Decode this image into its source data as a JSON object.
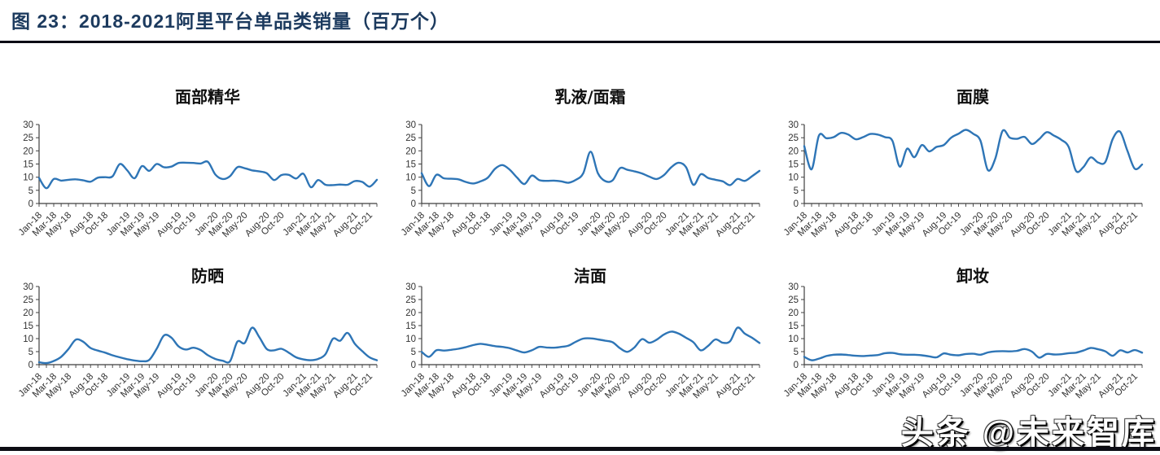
{
  "figure": {
    "title": "图 23：2018-2021阿里平台单品类销量（百万个）"
  },
  "watermark": {
    "text": "头条 @未来智库"
  },
  "chart_data": {
    "type": "line",
    "layout": "2x3 small multiples",
    "unit": "百万个",
    "line_color": "#2E75B6",
    "axis_color": "#3f3f3f",
    "title_color": "#1c3a5e",
    "ylim": [
      0,
      30
    ],
    "y_ticks": [
      0,
      5,
      10,
      15,
      20,
      25,
      30
    ],
    "grid": "off",
    "legend": "none",
    "n_points": 47,
    "x_start": "Jan-18",
    "x_end": "Nov-21",
    "x_tick_labels": [
      "Jan-18",
      "Mar-18",
      "May-18",
      "Aug-18",
      "Oct-18",
      "Jan-19",
      "Mar-19",
      "May-19",
      "Aug-19",
      "Oct-19",
      "Jan-20",
      "Mar-20",
      "May-20",
      "Aug-20",
      "Oct-20",
      "Jan-21",
      "Mar-21",
      "May-21",
      "Aug-21",
      "Oct-21"
    ],
    "x_label_indices": [
      0,
      2,
      4,
      7,
      9,
      12,
      14,
      16,
      19,
      21,
      24,
      26,
      28,
      31,
      33,
      36,
      38,
      40,
      43,
      45
    ],
    "charts": [
      {
        "title": "面部精华",
        "values": [
          9.7,
          5.8,
          9.3,
          8.7,
          9.0,
          9.2,
          8.8,
          8.3,
          9.8,
          10.0,
          10.3,
          15.0,
          12.6,
          9.6,
          14.2,
          12.4,
          15.0,
          13.8,
          14.0,
          15.4,
          15.5,
          15.4,
          15.2,
          15.8,
          11.0,
          9.3,
          10.4,
          13.8,
          13.4,
          12.6,
          12.2,
          11.5,
          8.9,
          10.8,
          10.9,
          9.5,
          11.3,
          6.2,
          8.9,
          7.1,
          7.0,
          7.2,
          7.1,
          8.5,
          8.2,
          6.4,
          9.0
        ]
      },
      {
        "title": "乳液/面霜",
        "values": [
          11.5,
          6.6,
          10.9,
          9.6,
          9.4,
          9.2,
          8.2,
          7.6,
          8.4,
          9.8,
          13.2,
          14.6,
          12.8,
          9.8,
          7.4,
          10.6,
          8.9,
          8.6,
          8.7,
          8.4,
          7.9,
          9.0,
          11.5,
          19.7,
          11.5,
          8.5,
          8.8,
          13.4,
          12.8,
          12.2,
          11.4,
          10.2,
          9.3,
          10.8,
          13.8,
          15.5,
          13.8,
          7.1,
          11.1,
          9.7,
          9.0,
          8.4,
          7.0,
          9.3,
          8.6,
          10.4,
          12.4
        ]
      },
      {
        "title": "面膜",
        "values": [
          21.8,
          13.0,
          25.8,
          24.8,
          25.2,
          26.8,
          26.2,
          24.4,
          25.2,
          26.4,
          26.2,
          25.2,
          23.8,
          14.0,
          20.8,
          17.6,
          22.2,
          19.8,
          21.5,
          22.2,
          25.0,
          26.5,
          28.0,
          26.5,
          23.8,
          12.7,
          17.0,
          27.6,
          25.0,
          24.6,
          25.3,
          22.6,
          24.5,
          27.1,
          25.8,
          24.2,
          21.5,
          12.4,
          13.8,
          17.5,
          15.6,
          15.8,
          24.5,
          27.3,
          20.0,
          13.2,
          14.8
        ]
      },
      {
        "title": "防晒",
        "values": [
          0.9,
          0.6,
          1.4,
          3.0,
          6.0,
          9.6,
          8.8,
          6.4,
          5.4,
          4.6,
          3.6,
          2.8,
          2.1,
          1.6,
          1.3,
          1.8,
          6.0,
          11.2,
          10.4,
          7.0,
          5.8,
          6.5,
          5.6,
          3.6,
          2.2,
          1.5,
          1.3,
          8.8,
          8.3,
          14.2,
          10.5,
          6.0,
          5.5,
          6.1,
          4.6,
          2.8,
          2.0,
          1.7,
          2.2,
          4.0,
          9.9,
          9.2,
          12.2,
          8.0,
          5.2,
          2.8,
          1.7
        ]
      },
      {
        "title": "洁面",
        "values": [
          4.9,
          3.0,
          5.5,
          5.4,
          5.7,
          6.1,
          6.7,
          7.5,
          8.0,
          7.6,
          7.1,
          6.8,
          6.3,
          5.4,
          4.7,
          5.5,
          6.8,
          6.6,
          6.5,
          6.8,
          7.3,
          8.8,
          10.0,
          10.1,
          9.7,
          9.2,
          8.6,
          6.3,
          4.9,
          6.7,
          9.8,
          8.4,
          9.6,
          11.6,
          12.7,
          11.9,
          10.3,
          8.6,
          5.5,
          7.2,
          9.7,
          8.4,
          9.0,
          14.2,
          11.9,
          10.3,
          8.3
        ]
      },
      {
        "title": "卸妆",
        "values": [
          3.0,
          1.7,
          2.3,
          3.3,
          3.8,
          3.9,
          3.7,
          3.4,
          3.3,
          3.5,
          3.7,
          4.4,
          4.5,
          4.0,
          3.8,
          3.8,
          3.6,
          3.2,
          2.8,
          4.3,
          3.8,
          3.6,
          4.1,
          4.2,
          3.8,
          4.7,
          5.1,
          5.2,
          5.1,
          5.3,
          6.0,
          5.0,
          2.7,
          4.1,
          3.9,
          4.0,
          4.4,
          4.6,
          5.4,
          6.4,
          5.9,
          5.1,
          3.4,
          5.5,
          4.7,
          5.6,
          4.6
        ]
      }
    ]
  }
}
